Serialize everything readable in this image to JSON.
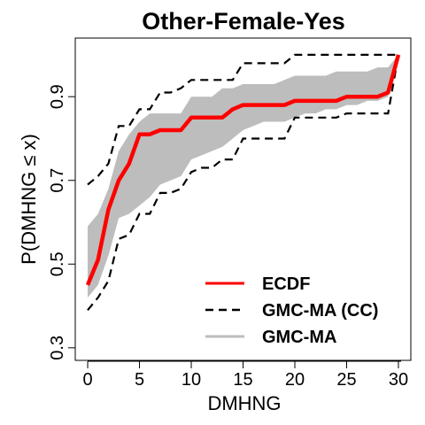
{
  "chart_data": {
    "type": "line",
    "title": "Other-Female-Yes",
    "xlabel": "DMHNG",
    "ylabel": "P(DMHNG ≤ x)",
    "xlim": [
      -1.2,
      31.2
    ],
    "ylim": [
      0.27,
      1.04
    ],
    "x_ticks": [
      "0",
      "5",
      "10",
      "15",
      "20",
      "25",
      "30"
    ],
    "y_ticks": [
      "0.3",
      "0.5",
      "0.7",
      "0.9"
    ],
    "legend_position": "bottom-right",
    "grid": false,
    "series": [
      {
        "name": "ECDF",
        "style": "solid",
        "color": "#ff0000",
        "x": [
          0,
          1,
          2,
          3,
          4,
          5,
          6,
          7,
          8,
          9,
          10,
          11,
          12,
          13,
          14,
          15,
          16,
          17,
          18,
          19,
          20,
          21,
          22,
          23,
          24,
          25,
          26,
          27,
          28,
          29,
          30
        ],
        "y": [
          0.45,
          0.51,
          0.63,
          0.7,
          0.74,
          0.81,
          0.81,
          0.82,
          0.82,
          0.82,
          0.85,
          0.85,
          0.85,
          0.85,
          0.87,
          0.88,
          0.88,
          0.88,
          0.88,
          0.88,
          0.89,
          0.89,
          0.89,
          0.89,
          0.89,
          0.9,
          0.9,
          0.9,
          0.9,
          0.91,
          1.0
        ]
      },
      {
        "name": "GMC-MA (CC)",
        "style": "dashed",
        "color": "#000000",
        "bounds": {
          "x": [
            0,
            1,
            2,
            3,
            4,
            5,
            6,
            7,
            8,
            9,
            10,
            11,
            12,
            13,
            14,
            15,
            16,
            17,
            18,
            19,
            20,
            21,
            22,
            23,
            24,
            25,
            26,
            27,
            28,
            29,
            30
          ],
          "lower": [
            0.39,
            0.42,
            0.46,
            0.56,
            0.57,
            0.62,
            0.62,
            0.67,
            0.67,
            0.68,
            0.72,
            0.73,
            0.73,
            0.75,
            0.75,
            0.8,
            0.8,
            0.8,
            0.8,
            0.8,
            0.85,
            0.85,
            0.85,
            0.85,
            0.85,
            0.86,
            0.86,
            0.86,
            0.86,
            0.86,
            1.0
          ],
          "upper": [
            0.69,
            0.71,
            0.74,
            0.83,
            0.83,
            0.87,
            0.87,
            0.91,
            0.91,
            0.92,
            0.94,
            0.94,
            0.94,
            0.94,
            0.94,
            0.98,
            0.98,
            0.98,
            0.98,
            0.98,
            1.0,
            1.0,
            1.0,
            1.0,
            1.0,
            1.0,
            1.0,
            1.0,
            1.0,
            1.0,
            1.0
          ]
        }
      },
      {
        "name": "GMC-MA",
        "style": "band",
        "color": "#bdbdbd",
        "bounds": {
          "x": [
            0,
            1,
            2,
            3,
            4,
            5,
            6,
            7,
            8,
            9,
            10,
            11,
            12,
            13,
            14,
            15,
            16,
            17,
            18,
            19,
            20,
            21,
            22,
            23,
            24,
            25,
            26,
            27,
            28,
            29,
            30
          ],
          "lower": [
            0.42,
            0.45,
            0.52,
            0.61,
            0.62,
            0.64,
            0.66,
            0.69,
            0.7,
            0.71,
            0.75,
            0.76,
            0.77,
            0.78,
            0.8,
            0.82,
            0.83,
            0.84,
            0.84,
            0.84,
            0.85,
            0.86,
            0.86,
            0.87,
            0.87,
            0.88,
            0.88,
            0.89,
            0.89,
            0.9,
            1.0
          ],
          "upper": [
            0.59,
            0.62,
            0.68,
            0.77,
            0.81,
            0.84,
            0.86,
            0.86,
            0.86,
            0.86,
            0.9,
            0.9,
            0.9,
            0.92,
            0.92,
            0.93,
            0.93,
            0.93,
            0.93,
            0.94,
            0.95,
            0.95,
            0.95,
            0.95,
            0.96,
            0.96,
            0.96,
            0.96,
            0.97,
            0.97,
            1.0
          ]
        }
      }
    ]
  }
}
